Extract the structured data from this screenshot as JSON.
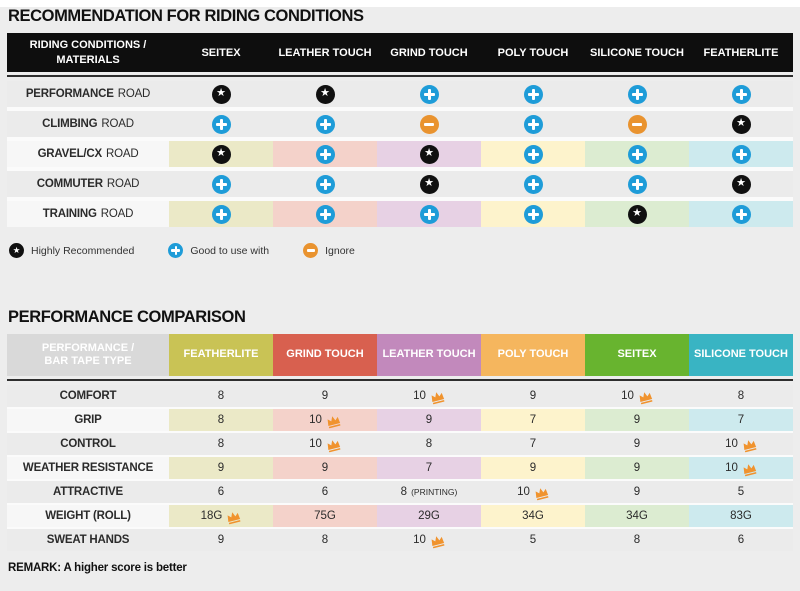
{
  "palette": {
    "page_bg": "#ededed",
    "row_gap": "#fbfbfb",
    "gray_row": "#ebebeb",
    "tinted_label_bg": "#f7f7f7",
    "header1_bg": "#0e0e0e",
    "header2_label_bg": "#d9d9d9",
    "icon_star": "#101010",
    "icon_plus": "#1e9cd8",
    "icon_minus": "#e9932f",
    "crown": "#f0932e",
    "column_tints": [
      "#ebe9c7",
      "#f4d2ca",
      "#e7d1e4",
      "#fdf3cc",
      "#dcecd1",
      "#cdeaee"
    ]
  },
  "riding_table": {
    "title": "RECOMMENDATION FOR RIDING CONDITIONS",
    "corner_header": "RIDING CONDITIONS / MATERIALS",
    "columns": [
      "SEITEX",
      "LEATHER TOUCH",
      "GRIND TOUCH",
      "POLY TOUCH",
      "SILICONE TOUCH",
      "FEATHERLITE"
    ],
    "rows": [
      {
        "label": "PERFORMANCE",
        "label_suffix": "ROAD",
        "tinted": false,
        "icons": [
          "star",
          "star",
          "plus",
          "plus",
          "plus",
          "plus"
        ]
      },
      {
        "label": "CLIMBING",
        "label_suffix": "ROAD",
        "tinted": false,
        "icons": [
          "plus",
          "plus",
          "minus",
          "plus",
          "minus",
          "star"
        ]
      },
      {
        "label": "GRAVEL/CX",
        "label_suffix": "ROAD",
        "tinted": true,
        "icons": [
          "star",
          "plus",
          "star",
          "plus",
          "plus",
          "plus"
        ]
      },
      {
        "label": "COMMUTER",
        "label_suffix": "ROAD",
        "tinted": false,
        "icons": [
          "plus",
          "plus",
          "star",
          "plus",
          "plus",
          "star"
        ]
      },
      {
        "label": "TRAINING",
        "label_suffix": "ROAD",
        "tinted": true,
        "icons": [
          "plus",
          "plus",
          "plus",
          "plus",
          "star",
          "plus"
        ]
      }
    ],
    "legend": [
      {
        "icon": "star",
        "label": "Highly Recommended"
      },
      {
        "icon": "plus",
        "label": "Good to use with"
      },
      {
        "icon": "minus",
        "label": "Ignore"
      }
    ]
  },
  "performance_table": {
    "title": "PERFORMANCE COMPARISON",
    "corner_header": "PERFORMANCE / BAR TAPE TYPE",
    "columns": [
      {
        "name": "FEATHERLITE",
        "color": "#c9c355"
      },
      {
        "name": "GRIND TOUCH",
        "color": "#d8604f"
      },
      {
        "name": "LEATHER TOUCH",
        "color": "#c289bc"
      },
      {
        "name": "POLY TOUCH",
        "color": "#f5b65e"
      },
      {
        "name": "SEITEX",
        "color": "#68b42f"
      },
      {
        "name": "SILICONE TOUCH",
        "color": "#39b4c3"
      }
    ],
    "rows": [
      {
        "label": "COMFORT",
        "tinted": false,
        "cells": [
          {
            "value": "8"
          },
          {
            "value": "9"
          },
          {
            "value": "10",
            "crown": true
          },
          {
            "value": "9"
          },
          {
            "value": "10",
            "crown": true
          },
          {
            "value": "8"
          }
        ]
      },
      {
        "label": "GRIP",
        "tinted": true,
        "cells": [
          {
            "value": "8"
          },
          {
            "value": "10",
            "crown": true
          },
          {
            "value": "9"
          },
          {
            "value": "7"
          },
          {
            "value": "9"
          },
          {
            "value": "7"
          }
        ]
      },
      {
        "label": "CONTROL",
        "tinted": false,
        "cells": [
          {
            "value": "8"
          },
          {
            "value": "10",
            "crown": true
          },
          {
            "value": "8"
          },
          {
            "value": "7"
          },
          {
            "value": "9"
          },
          {
            "value": "10",
            "crown": true
          }
        ]
      },
      {
        "label": "WEATHER RESISTANCE",
        "tinted": true,
        "cells": [
          {
            "value": "9"
          },
          {
            "value": "9"
          },
          {
            "value": "7"
          },
          {
            "value": "9"
          },
          {
            "value": "9"
          },
          {
            "value": "10",
            "crown": true
          }
        ]
      },
      {
        "label": "ATTRACTIVE",
        "tinted": false,
        "cells": [
          {
            "value": "6"
          },
          {
            "value": "6"
          },
          {
            "value": "8",
            "note": "(PRINTING)"
          },
          {
            "value": "10",
            "crown": true
          },
          {
            "value": "9"
          },
          {
            "value": "5"
          }
        ]
      },
      {
        "label": "WEIGHT (ROLL)",
        "tinted": true,
        "cells": [
          {
            "value": "18G",
            "crown": true
          },
          {
            "value": "75G"
          },
          {
            "value": "29G"
          },
          {
            "value": "34G"
          },
          {
            "value": "34G"
          },
          {
            "value": "83G"
          }
        ]
      },
      {
        "label": "SWEAT HANDS",
        "tinted": false,
        "cells": [
          {
            "value": "9"
          },
          {
            "value": "8"
          },
          {
            "value": "10",
            "crown": true
          },
          {
            "value": "5"
          },
          {
            "value": "8"
          },
          {
            "value": "6"
          }
        ]
      }
    ],
    "remark": "REMARK: A higher score is better"
  },
  "chart_data": [
    {
      "type": "table",
      "title": "RECOMMENDATION FOR RIDING CONDITIONS",
      "row_header": "RIDING CONDITIONS / MATERIALS",
      "columns": [
        "SEITEX",
        "LEATHER TOUCH",
        "GRIND TOUCH",
        "POLY TOUCH",
        "SILICONE TOUCH",
        "FEATHERLITE"
      ],
      "rows": [
        "PERFORMANCE ROAD",
        "CLIMBING ROAD",
        "GRAVEL/CX ROAD",
        "COMMUTER ROAD",
        "TRAINING ROAD"
      ],
      "values": [
        [
          "highly-recommended",
          "highly-recommended",
          "good-to-use-with",
          "good-to-use-with",
          "good-to-use-with",
          "good-to-use-with"
        ],
        [
          "good-to-use-with",
          "good-to-use-with",
          "ignore",
          "good-to-use-with",
          "ignore",
          "highly-recommended"
        ],
        [
          "highly-recommended",
          "good-to-use-with",
          "highly-recommended",
          "good-to-use-with",
          "good-to-use-with",
          "good-to-use-with"
        ],
        [
          "good-to-use-with",
          "good-to-use-with",
          "highly-recommended",
          "good-to-use-with",
          "good-to-use-with",
          "highly-recommended"
        ],
        [
          "good-to-use-with",
          "good-to-use-with",
          "good-to-use-with",
          "good-to-use-with",
          "highly-recommended",
          "good-to-use-with"
        ]
      ],
      "legend": [
        "Highly Recommended",
        "Good to use with",
        "Ignore"
      ],
      "legend_position": "below-table"
    },
    {
      "type": "table",
      "title": "PERFORMANCE COMPARISON",
      "row_header": "PERFORMANCE / BAR TAPE TYPE",
      "columns": [
        "FEATHERLITE",
        "GRIND TOUCH",
        "LEATHER TOUCH",
        "POLY TOUCH",
        "SEITEX",
        "SILICONE TOUCH"
      ],
      "rows": [
        "COMFORT",
        "GRIP",
        "CONTROL",
        "WEATHER RESISTANCE",
        "ATTRACTIVE",
        "WEIGHT (ROLL)",
        "SWEAT HANDS"
      ],
      "values": [
        [
          "8",
          "9",
          "10",
          "9",
          "10",
          "8"
        ],
        [
          "8",
          "10",
          "9",
          "7",
          "9",
          "7"
        ],
        [
          "8",
          "10",
          "8",
          "7",
          "9",
          "10"
        ],
        [
          "9",
          "9",
          "7",
          "9",
          "9",
          "10"
        ],
        [
          "6",
          "6",
          "8 (PRINTING)",
          "10",
          "9",
          "5"
        ],
        [
          "18G",
          "75G",
          "29G",
          "34G",
          "34G",
          "83G"
        ],
        [
          "9",
          "8",
          "10",
          "5",
          "8",
          "6"
        ]
      ],
      "crown_marked_cells": [
        {
          "row": "COMFORT",
          "columns": [
            "LEATHER TOUCH",
            "SEITEX"
          ]
        },
        {
          "row": "GRIP",
          "columns": [
            "GRIND TOUCH"
          ]
        },
        {
          "row": "CONTROL",
          "columns": [
            "GRIND TOUCH",
            "SILICONE TOUCH"
          ]
        },
        {
          "row": "WEATHER RESISTANCE",
          "columns": [
            "SILICONE TOUCH"
          ]
        },
        {
          "row": "ATTRACTIVE",
          "columns": [
            "POLY TOUCH"
          ]
        },
        {
          "row": "WEIGHT (ROLL)",
          "columns": [
            "FEATHERLITE"
          ]
        },
        {
          "row": "SWEAT HANDS",
          "columns": [
            "LEATHER TOUCH"
          ]
        }
      ],
      "remark": "REMARK: A higher score is better"
    }
  ]
}
